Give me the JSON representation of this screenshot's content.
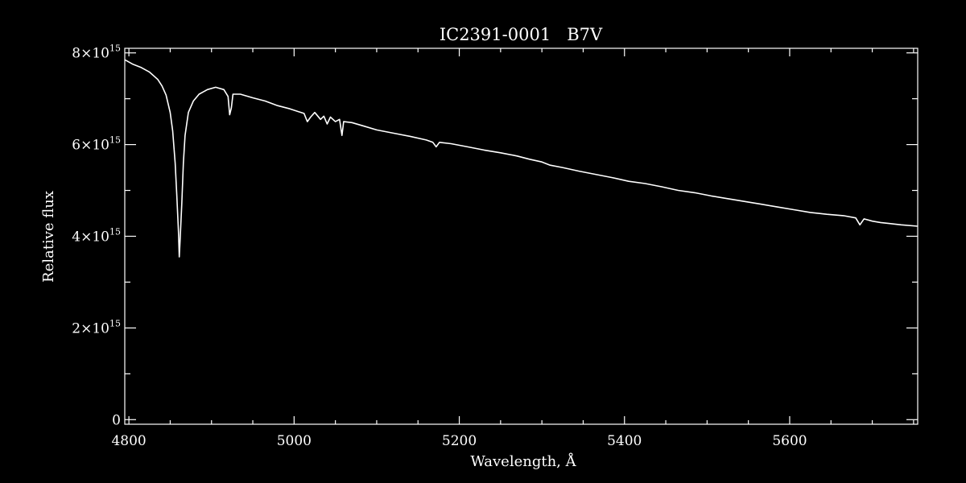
{
  "chart_data": {
    "type": "line",
    "title": "IC2391-0001   B7V",
    "xlabel": "Wavelength, Å",
    "ylabel": "Relative flux",
    "xlim": [
      4795,
      5755
    ],
    "ylim": [
      -100000000000000,
      8100000000000000
    ],
    "x_major_ticks": [
      4800,
      5000,
      5200,
      5400,
      5600
    ],
    "x_tick_labels": [
      "4800",
      "5000",
      "5200",
      "5400",
      "5600"
    ],
    "y_major_ticks": [
      0,
      2000000000000000,
      4000000000000000,
      6000000000000000,
      8000000000000000
    ],
    "y_tick_labels": [
      {
        "mantissa": "0",
        "times": "",
        "base": "",
        "exponent": ""
      },
      {
        "mantissa": "2",
        "times": "×",
        "base": "10",
        "exponent": "15"
      },
      {
        "mantissa": "4",
        "times": "×",
        "base": "10",
        "exponent": "15"
      },
      {
        "mantissa": "6",
        "times": "×",
        "base": "10",
        "exponent": "15"
      },
      {
        "mantissa": "8",
        "times": "×",
        "base": "10",
        "exponent": "15"
      }
    ],
    "grid": false,
    "line_color": "#ffffff",
    "background_color": "#000000",
    "series": [
      {
        "points": [
          [
            4795,
            7850000000000000.0
          ],
          [
            4805,
            7750000000000000.0
          ],
          [
            4815,
            7680000000000000.0
          ],
          [
            4825,
            7580000000000000.0
          ],
          [
            4835,
            7420000000000000.0
          ],
          [
            4840,
            7280000000000000.0
          ],
          [
            4845,
            7080000000000000.0
          ],
          [
            4850,
            6700000000000000.0
          ],
          [
            4853,
            6300000000000000.0
          ],
          [
            4856,
            5600000000000000.0
          ],
          [
            4858,
            4900000000000000.0
          ],
          [
            4860,
            4100000000000000.0
          ],
          [
            4861,
            3550000000000000.0
          ],
          [
            4862,
            3900000000000000.0
          ],
          [
            4864,
            4700000000000000.0
          ],
          [
            4866,
            5600000000000000.0
          ],
          [
            4868,
            6200000000000000.0
          ],
          [
            4872,
            6700000000000000.0
          ],
          [
            4878,
            6950000000000000.0
          ],
          [
            4885,
            7100000000000000.0
          ],
          [
            4895,
            7200000000000000.0
          ],
          [
            4905,
            7250000000000000.0
          ],
          [
            4915,
            7200000000000000.0
          ],
          [
            4920,
            7050000000000000.0
          ],
          [
            4922,
            6650000000000000.0
          ],
          [
            4924,
            6800000000000000.0
          ],
          [
            4926,
            7100000000000000.0
          ],
          [
            4935,
            7100000000000000.0
          ],
          [
            4950,
            7020000000000000.0
          ],
          [
            4965,
            6950000000000000.0
          ],
          [
            4980,
            6850000000000000.0
          ],
          [
            4995,
            6780000000000000.0
          ],
          [
            5005,
            6720000000000000.0
          ],
          [
            5012,
            6680000000000000.0
          ],
          [
            5016,
            6500000000000000.0
          ],
          [
            5020,
            6600000000000000.0
          ],
          [
            5025,
            6700000000000000.0
          ],
          [
            5032,
            6550000000000000.0
          ],
          [
            5036,
            6620000000000000.0
          ],
          [
            5040,
            6450000000000000.0
          ],
          [
            5044,
            6600000000000000.0
          ],
          [
            5050,
            6500000000000000.0
          ],
          [
            5055,
            6550000000000000.0
          ],
          [
            5058,
            6200000000000000.0
          ],
          [
            5060,
            6500000000000000.0
          ],
          [
            5070,
            6480000000000000.0
          ],
          [
            5085,
            6400000000000000.0
          ],
          [
            5100,
            6320000000000000.0
          ],
          [
            5120,
            6250000000000000.0
          ],
          [
            5140,
            6180000000000000.0
          ],
          [
            5160,
            6100000000000000.0
          ],
          [
            5168,
            6050000000000000.0
          ],
          [
            5172,
            5950000000000000.0
          ],
          [
            5176,
            6050000000000000.0
          ],
          [
            5190,
            6020000000000000.0
          ],
          [
            5210,
            5950000000000000.0
          ],
          [
            5230,
            5880000000000000.0
          ],
          [
            5250,
            5820000000000000.0
          ],
          [
            5270,
            5750000000000000.0
          ],
          [
            5285,
            5680000000000000.0
          ],
          [
            5300,
            5620000000000000.0
          ],
          [
            5310,
            5550000000000000.0
          ],
          [
            5325,
            5500000000000000.0
          ],
          [
            5345,
            5420000000000000.0
          ],
          [
            5365,
            5350000000000000.0
          ],
          [
            5385,
            5280000000000000.0
          ],
          [
            5405,
            5200000000000000.0
          ],
          [
            5425,
            5150000000000000.0
          ],
          [
            5445,
            5080000000000000.0
          ],
          [
            5465,
            5000000000000000.0
          ],
          [
            5485,
            4950000000000000.0
          ],
          [
            5505,
            4880000000000000.0
          ],
          [
            5525,
            4820000000000000.0
          ],
          [
            5545,
            4760000000000000.0
          ],
          [
            5565,
            4700000000000000.0
          ],
          [
            5585,
            4640000000000000.0
          ],
          [
            5605,
            4580000000000000.0
          ],
          [
            5625,
            4520000000000000.0
          ],
          [
            5645,
            4480000000000000.0
          ],
          [
            5665,
            4450000000000000.0
          ],
          [
            5680,
            4400000000000000.0
          ],
          [
            5685,
            4250000000000000.0
          ],
          [
            5690,
            4380000000000000.0
          ],
          [
            5700,
            4330000000000000.0
          ],
          [
            5710,
            4300000000000000.0
          ],
          [
            5720,
            4280000000000000.0
          ],
          [
            5735,
            4250000000000000.0
          ],
          [
            5755,
            4220000000000000.0
          ]
        ]
      }
    ]
  }
}
